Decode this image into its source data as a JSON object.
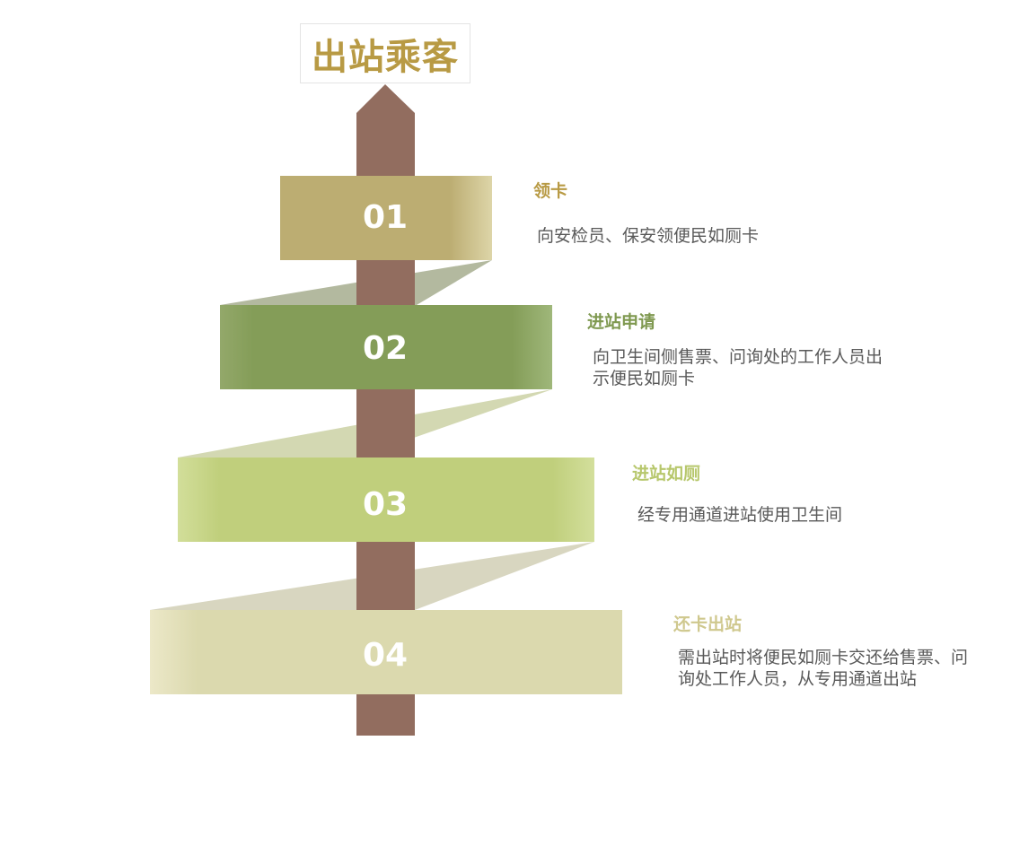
{
  "title": "出站乘客",
  "colors": {
    "title": "#b89a44",
    "pole": "#926d5f",
    "step1": "#bcad72",
    "step2": "#849d58",
    "step3": "#c0cf7c",
    "step4": "#dbd9ae",
    "text": "#595959"
  },
  "steps": [
    {
      "number": "01",
      "title": "领卡",
      "description": "向安检员、保安领便民如厕卡"
    },
    {
      "number": "02",
      "title": "进站申请",
      "description_lines": [
        "向卫生间侧售票、问询处的工作人员出",
        "示便民如厕卡"
      ]
    },
    {
      "number": "03",
      "title": "进站如厕",
      "description": "经专用通道进站使用卫生间"
    },
    {
      "number": "04",
      "title": "还卡出站",
      "description_lines": [
        "需出站时将便民如厕卡交还给售票、问",
        "询处工作人员，从专用通道出站"
      ]
    }
  ]
}
